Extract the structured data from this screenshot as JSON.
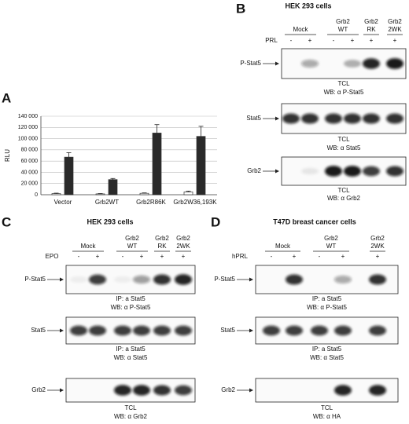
{
  "chart_data": {
    "type": "bar",
    "label": "A",
    "ylabel": "RLU",
    "categories": [
      "Vector",
      "Grb2WT",
      "Grb2R86K",
      "Grb2W36,193K"
    ],
    "series": [
      {
        "color": "#ffffff",
        "values": [
          2000,
          1500,
          2500,
          5000
        ],
        "errors": [
          800,
          600,
          800,
          1500
        ]
      },
      {
        "color": "#2a2a2a",
        "values": [
          67000,
          27000,
          110000,
          104000
        ],
        "errors": [
          8000,
          2000,
          15000,
          18000
        ]
      }
    ],
    "ylim": [
      0,
      140000
    ],
    "yticks": [
      0,
      {
        "value": 20000,
        "label": "20 000"
      },
      {
        "value": 40000,
        "label": "40 000"
      },
      {
        "value": 60000,
        "label": "60 000"
      },
      {
        "value": 80000,
        "label": "80 000"
      },
      {
        "value": 100000,
        "label": "100 000"
      },
      {
        "value": 120000,
        "label": "120 000"
      },
      {
        "value": 140000,
        "label": "140 000"
      }
    ]
  },
  "panels": [
    {
      "label": "B",
      "title": "HEK 293 cells",
      "treatment": "PRL",
      "signs": [
        "-",
        "+",
        "-",
        "+",
        "+",
        "+"
      ],
      "groups": [
        {
          "label": [
            "Mock"
          ]
        },
        {
          "label": [
            "Grb2",
            "WT"
          ]
        },
        {
          "label": [
            "Grb2",
            "RK"
          ]
        },
        {
          "label": [
            "Grb2",
            "2WK"
          ]
        }
      ],
      "blots": [
        {
          "name": "P-Stat5",
          "caption": [
            "TCL",
            "WB: α P-Stat5"
          ]
        },
        {
          "name": "Stat5",
          "caption": [
            "TCL",
            "WB: α Stat5"
          ]
        },
        {
          "name": "Grb2",
          "caption": [
            "TCL",
            "WB: α Grb2"
          ]
        }
      ]
    },
    {
      "label": "C",
      "title": "HEK 293 cells",
      "treatment": "EPO",
      "signs": [
        "-",
        "+",
        "-",
        "+",
        "+",
        "+"
      ],
      "groups": [
        {
          "label": [
            "Mock"
          ]
        },
        {
          "label": [
            "Grb2",
            "WT"
          ]
        },
        {
          "label": [
            "Grb2",
            "RK"
          ]
        },
        {
          "label": [
            "Grb2",
            "2WK"
          ]
        }
      ],
      "blots": [
        {
          "name": "P-Stat5",
          "caption": [
            "IP: a Stat5",
            "WB: α P-Stat5"
          ]
        },
        {
          "name": "Stat5",
          "caption": [
            "IP: a Stat5",
            "WB: α Stat5"
          ]
        },
        {
          "name": "Grb2",
          "caption": [
            "TCL",
            "WB: α Grb2"
          ]
        }
      ]
    },
    {
      "label": "D",
      "title": "T47D breast cancer cells",
      "treatment": "hPRL",
      "signs": [
        "-",
        "+",
        "-",
        "+",
        "+"
      ],
      "groups": [
        {
          "label": [
            "Mock"
          ]
        },
        {
          "label": [
            "Grb2",
            "WT"
          ]
        },
        {
          "label": [
            "Grb2",
            "2WK"
          ]
        }
      ],
      "blots": [
        {
          "name": "P-Stat5",
          "caption": [
            "IP: a Stat5",
            "WB: α P-Stat5"
          ]
        },
        {
          "name": "Stat5",
          "caption": [
            "IP: a Stat5",
            "WB: α Stat5"
          ]
        },
        {
          "name": "Grb2",
          "caption": [
            "TCL",
            "WB: α HA"
          ]
        }
      ]
    }
  ]
}
